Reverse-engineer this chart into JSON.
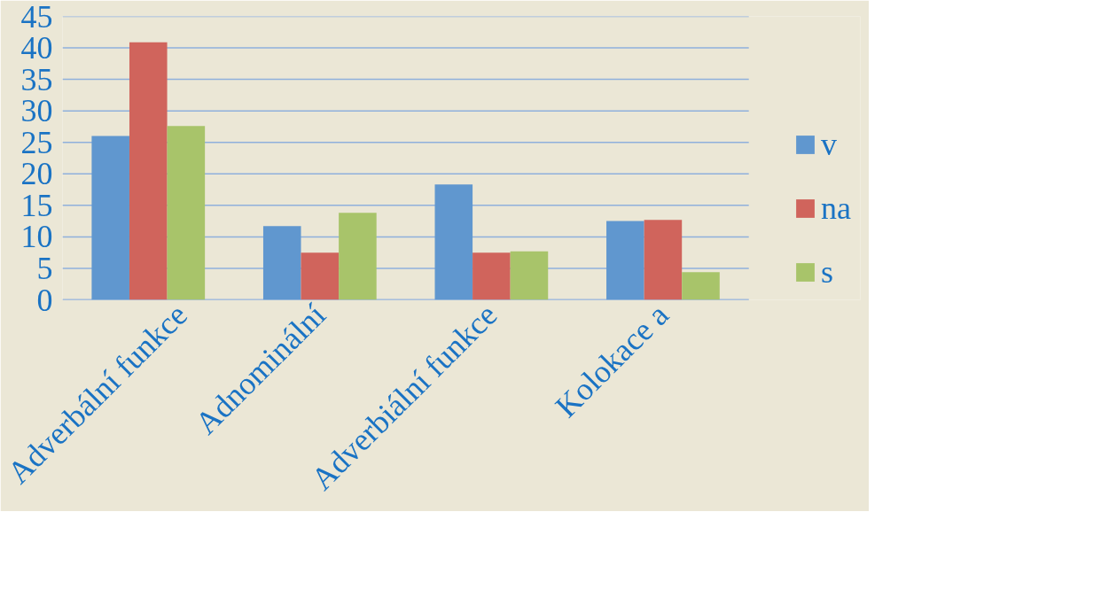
{
  "chart_data": {
    "type": "bar",
    "categories": [
      "Adverbální funkce",
      "Adnominální",
      "Adverbiální funkce",
      "Kolokace a"
    ],
    "series": [
      {
        "name": "v",
        "color": "#6097cf",
        "values": [
          26,
          11.7,
          18.3,
          12.5
        ]
      },
      {
        "name": "na",
        "color": "#d0645c",
        "values": [
          40.9,
          7.5,
          7.5,
          12.7
        ]
      },
      {
        "name": "s",
        "color": "#a8c46a",
        "values": [
          27.6,
          13.8,
          7.7,
          4.4
        ]
      }
    ],
    "ylim": [
      0,
      45
    ],
    "yticks": [
      0,
      5,
      10,
      15,
      20,
      25,
      30,
      35,
      40,
      45
    ],
    "grid": "y",
    "legend": "right"
  }
}
